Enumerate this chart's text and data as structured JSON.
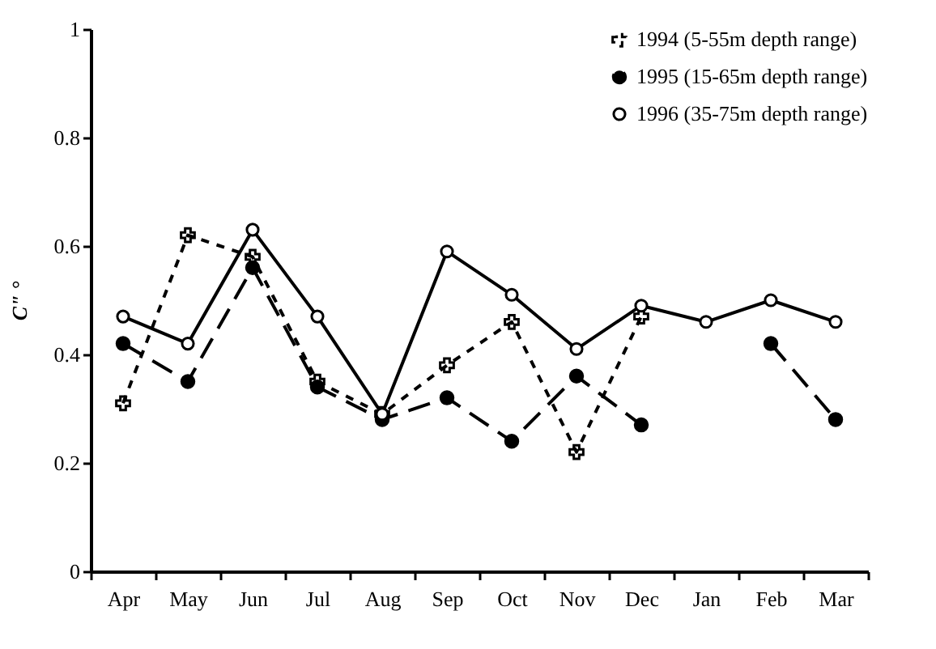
{
  "chart_data": {
    "type": "line",
    "ylabel": "C\" °",
    "categories": [
      "Apr",
      "May",
      "Jun",
      "Jul",
      "Aug",
      "Sep",
      "Oct",
      "Nov",
      "Dec",
      "Jan",
      "Feb",
      "Mar"
    ],
    "ylim": [
      0,
      1
    ],
    "yticks": [
      0,
      0.2,
      0.4,
      0.6,
      0.8,
      1
    ],
    "grid": false,
    "legend": "top right",
    "series": [
      {
        "name": "1994 (5-55m depth range)",
        "color": "#000000",
        "line_style": "dotted",
        "marker": "cross",
        "values": [
          0.31,
          0.62,
          0.58,
          0.35,
          0.29,
          0.38,
          0.46,
          0.22,
          0.47,
          null,
          null,
          null
        ]
      },
      {
        "name": "1995 (15-65m depth range)",
        "color": "#000000",
        "line_style": "dashed",
        "marker": "circle",
        "values": [
          0.42,
          0.35,
          0.56,
          0.34,
          0.28,
          0.32,
          0.24,
          0.36,
          0.27,
          null,
          0.42,
          0.28
        ]
      },
      {
        "name": "1996 (35-75m depth range)",
        "color": "#000000",
        "line_style": "solid",
        "marker": "open circle",
        "values": [
          0.47,
          0.42,
          0.63,
          0.47,
          0.29,
          0.59,
          0.51,
          0.41,
          0.49,
          0.46,
          0.5,
          0.46
        ]
      }
    ]
  }
}
